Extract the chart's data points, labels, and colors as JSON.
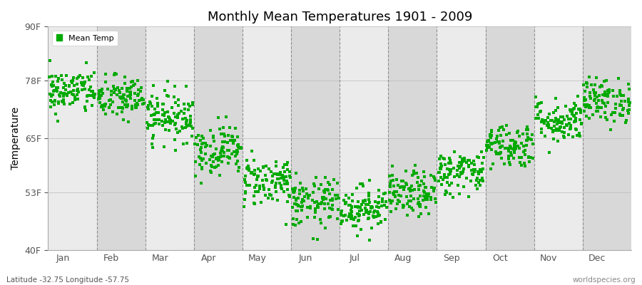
{
  "title": "Monthly Mean Temperatures 1901 - 2009",
  "ylabel": "Temperature",
  "y_ticks": [
    40,
    53,
    65,
    78,
    90
  ],
  "y_tick_labels": [
    "40F",
    "53F",
    "65F",
    "78F",
    "90F"
  ],
  "ylim": [
    40,
    90
  ],
  "months": [
    "Jan",
    "Feb",
    "Mar",
    "Apr",
    "May",
    "Jun",
    "Jul",
    "Aug",
    "Sep",
    "Oct",
    "Nov",
    "Dec"
  ],
  "dot_color": "#00aa00",
  "background_color_light": "#ebebeb",
  "background_color_dark": "#d8d8d8",
  "fig_background": "#ffffff",
  "legend_label": "Mean Temp",
  "footer_left": "Latitude -32.75 Longitude -57.75",
  "footer_right": "worldspecies.org",
  "num_years": 109,
  "monthly_means_f": [
    75.5,
    74.0,
    70.0,
    62.5,
    55.5,
    50.5,
    49.5,
    52.5,
    57.5,
    63.5,
    69.0,
    73.5
  ],
  "monthly_stds_f": [
    2.5,
    2.5,
    2.8,
    2.8,
    2.8,
    2.8,
    2.5,
    2.5,
    2.5,
    2.5,
    2.5,
    2.5
  ],
  "seed": 42
}
